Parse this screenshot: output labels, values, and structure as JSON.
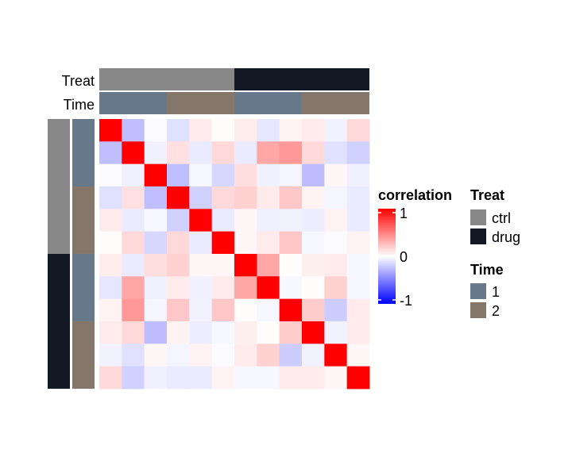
{
  "chart_data": {
    "type": "heatmap",
    "rows": 12,
    "cols": 12,
    "values": [
      [
        1.0,
        -0.25,
        -0.02,
        -0.12,
        0.08,
        0.01,
        0.07,
        -0.1,
        0.05,
        0.08,
        -0.05,
        0.15
      ],
      [
        -0.25,
        1.0,
        -0.06,
        0.12,
        -0.08,
        0.15,
        -0.08,
        0.35,
        0.4,
        0.15,
        -0.12,
        -0.18
      ],
      [
        -0.02,
        -0.06,
        1.0,
        -0.25,
        -0.03,
        -0.16,
        0.13,
        -0.06,
        -0.04,
        -0.26,
        0.03,
        -0.06
      ],
      [
        -0.12,
        0.12,
        -0.25,
        1.0,
        -0.18,
        0.15,
        0.18,
        0.08,
        0.22,
        0.05,
        -0.04,
        -0.08
      ],
      [
        0.08,
        -0.08,
        -0.03,
        -0.18,
        1.0,
        -0.08,
        0.03,
        -0.06,
        -0.05,
        -0.07,
        0.05,
        -0.08
      ],
      [
        0.01,
        0.15,
        -0.16,
        0.15,
        -0.08,
        1.0,
        0.03,
        0.08,
        0.22,
        -0.03,
        -0.02,
        0.05
      ],
      [
        0.07,
        -0.08,
        0.13,
        0.18,
        0.03,
        0.03,
        1.0,
        0.35,
        0.01,
        0.06,
        0.08,
        -0.03
      ],
      [
        -0.1,
        0.35,
        -0.06,
        0.08,
        -0.06,
        0.08,
        0.35,
        1.0,
        -0.03,
        0.01,
        0.18,
        -0.03
      ],
      [
        0.05,
        0.4,
        -0.04,
        0.22,
        -0.05,
        0.22,
        0.01,
        -0.03,
        1.0,
        0.2,
        -0.2,
        0.08
      ],
      [
        0.08,
        0.15,
        -0.26,
        0.05,
        -0.07,
        -0.03,
        0.06,
        0.01,
        0.2,
        1.0,
        -0.05,
        0.08
      ],
      [
        -0.05,
        -0.12,
        0.03,
        -0.04,
        0.05,
        -0.02,
        0.08,
        0.18,
        -0.2,
        -0.05,
        1.0,
        0.03
      ],
      [
        0.15,
        -0.18,
        -0.06,
        -0.08,
        -0.08,
        0.05,
        -0.03,
        -0.03,
        0.08,
        0.08,
        0.03,
        1.0
      ]
    ],
    "annotations": {
      "Treat": [
        "ctrl",
        "ctrl",
        "ctrl",
        "ctrl",
        "ctrl",
        "ctrl",
        "drug",
        "drug",
        "drug",
        "drug",
        "drug",
        "drug"
      ],
      "Time": [
        "1",
        "1",
        "1",
        "2",
        "2",
        "2",
        "1",
        "1",
        "1",
        "2",
        "2",
        "2"
      ]
    },
    "colorbar": {
      "title": "correlation",
      "range": [
        -1,
        1
      ],
      "ticks": [
        "1",
        "0",
        "-1"
      ],
      "colors": {
        "low": "#0000ff",
        "mid": "#ffffff",
        "high": "#ff0000"
      }
    },
    "legends": [
      {
        "title": "Treat",
        "entries": [
          {
            "label": "ctrl",
            "color": "#888888"
          },
          {
            "label": "drug",
            "color": "#111a24"
          }
        ]
      },
      {
        "title": "Time",
        "entries": [
          {
            "label": "1",
            "color": "#67788a"
          },
          {
            "label": "2",
            "color": "#85766a"
          }
        ]
      }
    ],
    "annotation_labels": [
      "Treat",
      "Time"
    ]
  }
}
